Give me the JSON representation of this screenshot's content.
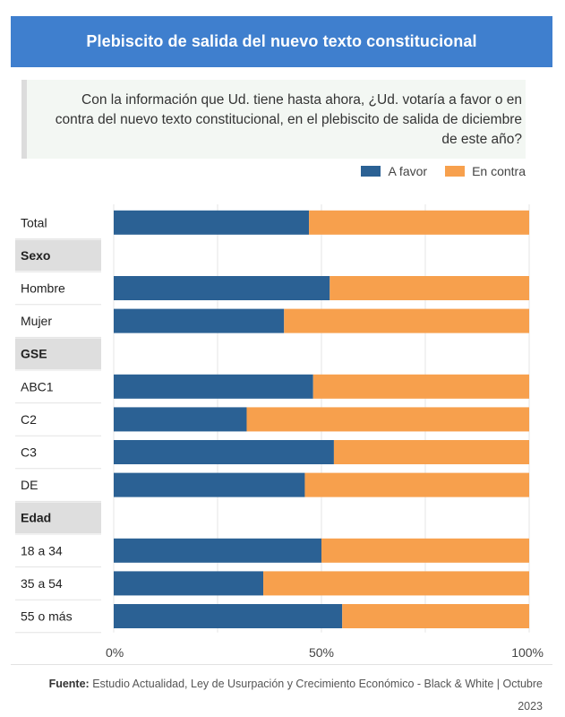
{
  "header": {
    "title": "Plebiscito de salida del nuevo texto constitucional"
  },
  "question": {
    "text": "Con la información que Ud. tiene hasta ahora, ¿Ud. votaría a favor o en contra del nuevo texto constitucional, en el plebiscito de salida de diciembre de este año?"
  },
  "legend": [
    {
      "label": "A favor",
      "color": "#2b6194"
    },
    {
      "label": "En contra",
      "color": "#f7a04d"
    }
  ],
  "footer": {
    "source_label": "Fuente:",
    "source_text": "Estudio Actualidad, Ley de Usurpación y Crecimiento Económico - Black & White | Octubre 2023"
  },
  "chart_data": {
    "type": "bar",
    "orientation": "horizontal",
    "stacked": true,
    "normalized": true,
    "rows": [
      {
        "label": "Total",
        "kind": "row",
        "a_favor": 47,
        "en_contra": 53
      },
      {
        "label": "Sexo",
        "kind": "group"
      },
      {
        "label": "Hombre",
        "kind": "row",
        "a_favor": 52,
        "en_contra": 48
      },
      {
        "label": "Mujer",
        "kind": "row",
        "a_favor": 41,
        "en_contra": 59
      },
      {
        "label": "GSE",
        "kind": "group"
      },
      {
        "label": "ABC1",
        "kind": "row",
        "a_favor": 48,
        "en_contra": 52
      },
      {
        "label": "C2",
        "kind": "row",
        "a_favor": 32,
        "en_contra": 68
      },
      {
        "label": "C3",
        "kind": "row",
        "a_favor": 53,
        "en_contra": 47
      },
      {
        "label": "DE",
        "kind": "row",
        "a_favor": 46,
        "en_contra": 54
      },
      {
        "label": "Edad",
        "kind": "group"
      },
      {
        "label": "18 a 34",
        "kind": "row",
        "a_favor": 50,
        "en_contra": 50
      },
      {
        "label": "35 a 54",
        "kind": "row",
        "a_favor": 36,
        "en_contra": 64
      },
      {
        "label": "55 o más",
        "kind": "row",
        "a_favor": 55,
        "en_contra": 45
      }
    ],
    "series": [
      {
        "name": "A favor",
        "key": "a_favor",
        "color": "#2b6194"
      },
      {
        "name": "En contra",
        "key": "en_contra",
        "color": "#f7a04d"
      }
    ],
    "xticks": [
      {
        "value": 0,
        "label": "0%"
      },
      {
        "value": 50,
        "label": "50%"
      },
      {
        "value": 100,
        "label": "100%"
      }
    ],
    "xlim": [
      0,
      100
    ],
    "grid": true
  }
}
